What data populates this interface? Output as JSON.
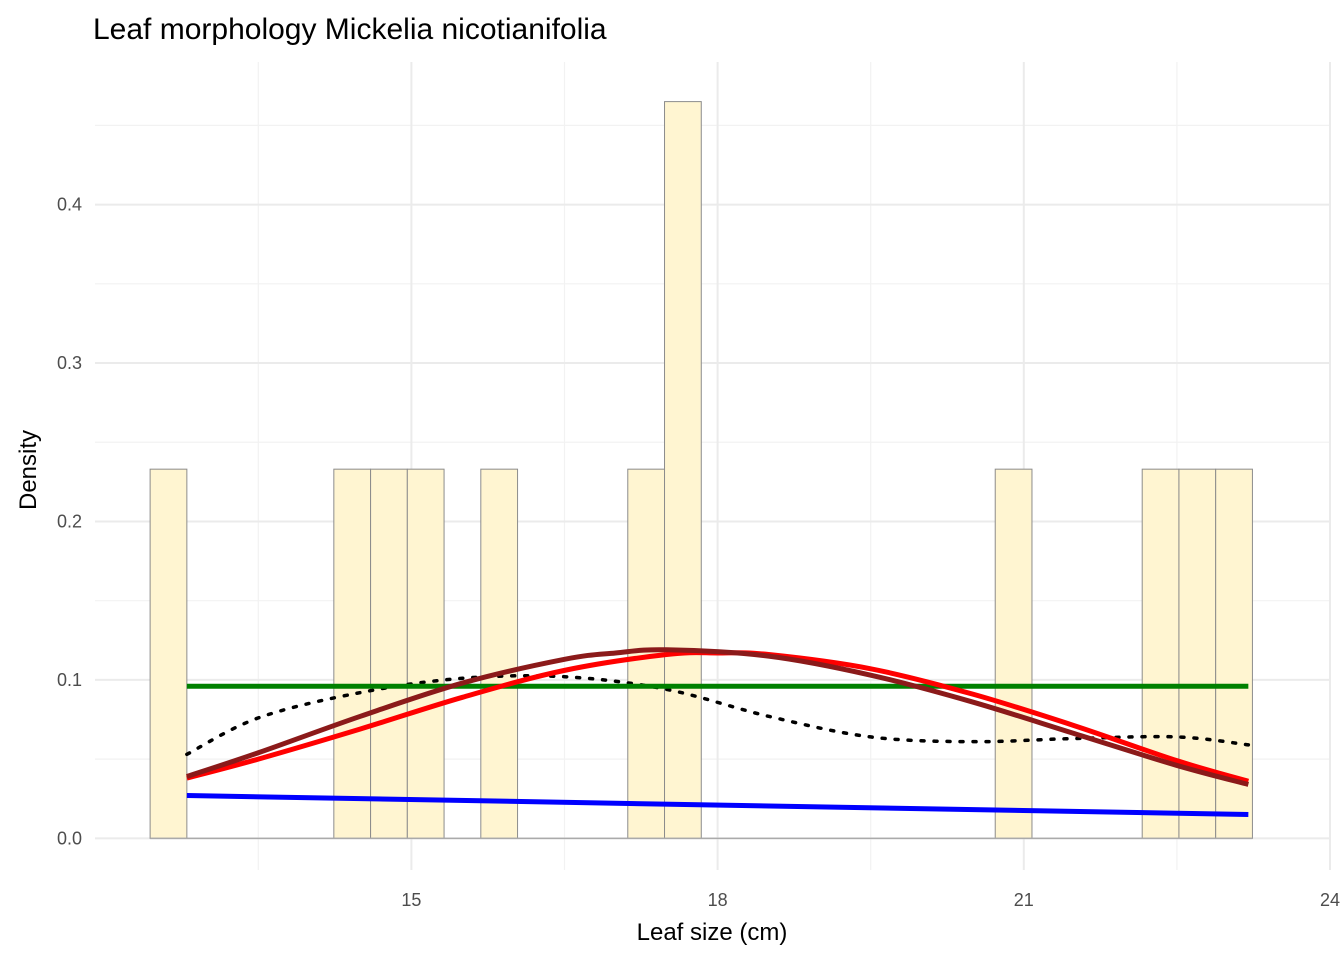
{
  "chart_data": {
    "type": "bar",
    "title": "Leaf morphology Mickelia nicotianifolia",
    "xlabel": "Leaf size (cm)",
    "ylabel": "Density",
    "xlim": [
      11.9,
      24.0
    ],
    "ylim": [
      -0.02,
      0.49
    ],
    "x_ticks": [
      15,
      18,
      21,
      24
    ],
    "y_ticks": [
      0.0,
      0.1,
      0.2,
      0.3,
      0.4
    ],
    "x_tick_labels": [
      "15",
      "18",
      "21",
      "24"
    ],
    "y_tick_labels": [
      "0.0",
      "0.1",
      "0.2",
      "0.3",
      "0.4"
    ],
    "grid": true,
    "histogram": {
      "fill": "#fff5d1",
      "stroke": "#8c8c8c",
      "bin_width": 0.36,
      "bins": [
        {
          "x0": 12.44,
          "x1": 12.8,
          "density": 0.233
        },
        {
          "x0": 14.24,
          "x1": 14.6,
          "density": 0.233
        },
        {
          "x0": 14.6,
          "x1": 14.96,
          "density": 0.233
        },
        {
          "x0": 14.96,
          "x1": 15.32,
          "density": 0.233
        },
        {
          "x0": 15.68,
          "x1": 16.04,
          "density": 0.233
        },
        {
          "x0": 17.12,
          "x1": 17.48,
          "density": 0.233
        },
        {
          "x0": 17.48,
          "x1": 17.84,
          "density": 0.465
        },
        {
          "x0": 20.72,
          "x1": 21.08,
          "density": 0.233
        },
        {
          "x0": 22.16,
          "x1": 22.52,
          "density": 0.233
        },
        {
          "x0": 22.52,
          "x1": 22.88,
          "density": 0.233
        },
        {
          "x0": 22.88,
          "x1": 23.24,
          "density": 0.233
        }
      ]
    },
    "series": [
      {
        "color": "#000000",
        "style": "dotted",
        "x": [
          12.8,
          13.5,
          14.5,
          15.5,
          16.5,
          17.5,
          18.5,
          19.5,
          20.5,
          21.5,
          22.5,
          23.2
        ],
        "y": [
          0.053,
          0.076,
          0.092,
          0.101,
          0.102,
          0.094,
          0.077,
          0.064,
          0.061,
          0.063,
          0.064,
          0.059
        ]
      },
      {
        "color": "#008000",
        "style": "solid",
        "x": [
          12.8,
          23.2
        ],
        "y": [
          0.096,
          0.096
        ]
      },
      {
        "color": "#0000ff",
        "style": "solid",
        "x": [
          12.8,
          23.2
        ],
        "y": [
          0.027,
          0.015
        ]
      },
      {
        "color": "#ff0000",
        "style": "solid",
        "x": [
          12.8,
          13.5,
          14.5,
          15.5,
          16.5,
          17.5,
          18.0,
          18.5,
          19.5,
          20.5,
          21.5,
          22.5,
          23.2
        ],
        "y": [
          0.038,
          0.05,
          0.069,
          0.089,
          0.106,
          0.116,
          0.117,
          0.116,
          0.107,
          0.091,
          0.071,
          0.049,
          0.036
        ]
      },
      {
        "color": "#8b1a1a",
        "style": "solid",
        "x": [
          12.8,
          13.5,
          14.5,
          15.5,
          16.5,
          17.0,
          17.5,
          18.5,
          19.5,
          20.5,
          21.5,
          22.5,
          23.2
        ],
        "y": [
          0.039,
          0.054,
          0.077,
          0.098,
          0.113,
          0.117,
          0.119,
          0.115,
          0.103,
          0.086,
          0.066,
          0.046,
          0.034
        ]
      }
    ]
  }
}
